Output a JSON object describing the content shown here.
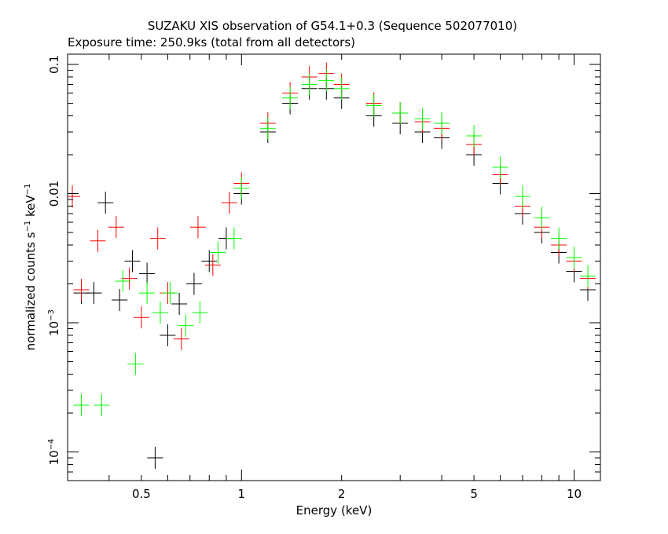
{
  "chart_data": {
    "type": "scatter",
    "title": "SUZAKU XIS observation of G54.1+0.3 (Sequence 502077010)",
    "subtitle": "Exposure time: 250.9ks (total from all detectors)",
    "xlabel": "Energy (keV)",
    "ylabel_main": "normalized counts s",
    "ylabel_mid": " keV",
    "ylabel_sup": "−1",
    "x_scale": "log",
    "y_scale": "log",
    "xlim": [
      0.3,
      12
    ],
    "ylim": [
      6e-05,
      0.12
    ],
    "x_ticks": [
      {
        "value": 0.5,
        "label": "0.5"
      },
      {
        "value": 1,
        "label": "1"
      },
      {
        "value": 2,
        "label": "2"
      },
      {
        "value": 5,
        "label": "5"
      },
      {
        "value": 10,
        "label": "10"
      }
    ],
    "y_ticks": [
      {
        "value": 0.1,
        "base": "0.1",
        "exp": ""
      },
      {
        "value": 0.01,
        "base": "0.01",
        "exp": ""
      },
      {
        "value": 0.001,
        "base": "10",
        "exp": "−3"
      },
      {
        "value": 0.0001,
        "base": "10",
        "exp": "−4"
      }
    ],
    "grid": false,
    "legend": "none",
    "series": [
      {
        "color": "#000000",
        "points": [
          [
            0.33,
            0.0017
          ],
          [
            0.36,
            0.0017
          ],
          [
            0.39,
            0.0085
          ],
          [
            0.43,
            0.0015
          ],
          [
            0.47,
            0.003
          ],
          [
            0.52,
            0.0024
          ],
          [
            0.55,
            9e-05
          ],
          [
            0.6,
            0.0008
          ],
          [
            0.65,
            0.0014
          ],
          [
            0.72,
            0.002
          ],
          [
            0.8,
            0.003
          ],
          [
            0.9,
            0.0045
          ],
          [
            1.0,
            0.01
          ],
          [
            1.2,
            0.03
          ],
          [
            1.4,
            0.05
          ],
          [
            1.6,
            0.065
          ],
          [
            1.8,
            0.065
          ],
          [
            2.0,
            0.055
          ],
          [
            2.5,
            0.04
          ],
          [
            3.0,
            0.035
          ],
          [
            3.5,
            0.03
          ],
          [
            4.0,
            0.027
          ],
          [
            5.0,
            0.02
          ],
          [
            6.0,
            0.012
          ],
          [
            7.0,
            0.007
          ],
          [
            8.0,
            0.005
          ],
          [
            9.0,
            0.0035
          ],
          [
            10.0,
            0.0025
          ],
          [
            11.0,
            0.0018
          ]
        ]
      },
      {
        "color": "#ff0000",
        "points": [
          [
            0.31,
            0.0095
          ],
          [
            0.33,
            0.0018
          ],
          [
            0.37,
            0.0043
          ],
          [
            0.42,
            0.0055
          ],
          [
            0.46,
            0.0022
          ],
          [
            0.5,
            0.0011
          ],
          [
            0.56,
            0.0045
          ],
          [
            0.6,
            0.0017
          ],
          [
            0.66,
            0.00075
          ],
          [
            0.74,
            0.0055
          ],
          [
            0.82,
            0.0028
          ],
          [
            0.92,
            0.0085
          ],
          [
            1.0,
            0.012
          ],
          [
            1.2,
            0.035
          ],
          [
            1.4,
            0.06
          ],
          [
            1.6,
            0.08
          ],
          [
            1.8,
            0.085
          ],
          [
            2.0,
            0.07
          ],
          [
            2.5,
            0.05
          ],
          [
            3.0,
            0.042
          ],
          [
            3.5,
            0.036
          ],
          [
            4.0,
            0.032
          ],
          [
            5.0,
            0.024
          ],
          [
            6.0,
            0.014
          ],
          [
            7.0,
            0.008
          ],
          [
            8.0,
            0.0055
          ],
          [
            9.0,
            0.004
          ],
          [
            10.0,
            0.003
          ],
          [
            11.0,
            0.0022
          ]
        ]
      },
      {
        "color": "#00ff00",
        "points": [
          [
            0.33,
            0.00023
          ],
          [
            0.38,
            0.00023
          ],
          [
            0.44,
            0.0021
          ],
          [
            0.48,
            0.00048
          ],
          [
            0.52,
            0.0017
          ],
          [
            0.57,
            0.0012
          ],
          [
            0.61,
            0.0017
          ],
          [
            0.68,
            0.00095
          ],
          [
            0.75,
            0.0012
          ],
          [
            0.85,
            0.0035
          ],
          [
            0.95,
            0.0045
          ],
          [
            1.0,
            0.011
          ],
          [
            1.2,
            0.032
          ],
          [
            1.4,
            0.055
          ],
          [
            1.6,
            0.07
          ],
          [
            1.8,
            0.075
          ],
          [
            2.0,
            0.065
          ],
          [
            2.5,
            0.048
          ],
          [
            3.0,
            0.042
          ],
          [
            3.5,
            0.038
          ],
          [
            4.0,
            0.035
          ],
          [
            5.0,
            0.028
          ],
          [
            6.0,
            0.016
          ],
          [
            7.0,
            0.0095
          ],
          [
            8.0,
            0.0065
          ],
          [
            9.0,
            0.0045
          ],
          [
            10.0,
            0.0032
          ],
          [
            11.0,
            0.0023
          ]
        ]
      }
    ]
  }
}
